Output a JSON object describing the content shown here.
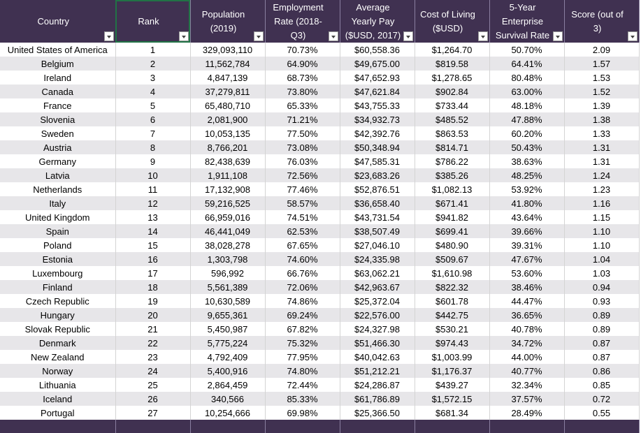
{
  "table": {
    "headers": [
      "Country",
      "Rank",
      "Population (2019)",
      "Employment Rate (2018-Q3)",
      "Average Yearly Pay ($USD, 2017)",
      "Cost of Living ($USD)",
      "5-Year Enterprise Survival Rate",
      "Score (out of 3)"
    ],
    "rows": [
      [
        "United States of America",
        "1",
        "329,093,110",
        "70.73%",
        "$60,558.36",
        "$1,264.70",
        "50.70%",
        "2.09"
      ],
      [
        "Belgium",
        "2",
        "11,562,784",
        "64.90%",
        "$49,675.00",
        "$819.58",
        "64.41%",
        "1.57"
      ],
      [
        "Ireland",
        "3",
        "4,847,139",
        "68.73%",
        "$47,652.93",
        "$1,278.65",
        "80.48%",
        "1.53"
      ],
      [
        "Canada",
        "4",
        "37,279,811",
        "73.80%",
        "$47,621.84",
        "$902.84",
        "63.00%",
        "1.52"
      ],
      [
        "France",
        "5",
        "65,480,710",
        "65.33%",
        "$43,755.33",
        "$733.44",
        "48.18%",
        "1.39"
      ],
      [
        "Slovenia",
        "6",
        "2,081,900",
        "71.21%",
        "$34,932.73",
        "$485.52",
        "47.88%",
        "1.38"
      ],
      [
        "Sweden",
        "7",
        "10,053,135",
        "77.50%",
        "$42,392.76",
        "$863.53",
        "60.20%",
        "1.33"
      ],
      [
        "Austria",
        "8",
        "8,766,201",
        "73.08%",
        "$50,348.94",
        "$814.71",
        "50.43%",
        "1.31"
      ],
      [
        "Germany",
        "9",
        "82,438,639",
        "76.03%",
        "$47,585.31",
        "$786.22",
        "38.63%",
        "1.31"
      ],
      [
        "Latvia",
        "10",
        "1,911,108",
        "72.56%",
        "$23,683.26",
        "$385.26",
        "48.25%",
        "1.24"
      ],
      [
        "Netherlands",
        "11",
        "17,132,908",
        "77.46%",
        "$52,876.51",
        "$1,082.13",
        "53.92%",
        "1.23"
      ],
      [
        "Italy",
        "12",
        "59,216,525",
        "58.57%",
        "$36,658.40",
        "$671.41",
        "41.80%",
        "1.16"
      ],
      [
        "United Kingdom",
        "13",
        "66,959,016",
        "74.51%",
        "$43,731.54",
        "$941.82",
        "43.64%",
        "1.15"
      ],
      [
        "Spain",
        "14",
        "46,441,049",
        "62.53%",
        "$38,507.49",
        "$699.41",
        "39.66%",
        "1.10"
      ],
      [
        "Poland",
        "15",
        "38,028,278",
        "67.65%",
        "$27,046.10",
        "$480.90",
        "39.31%",
        "1.10"
      ],
      [
        "Estonia",
        "16",
        "1,303,798",
        "74.60%",
        "$24,335.98",
        "$509.67",
        "47.67%",
        "1.04"
      ],
      [
        "Luxembourg",
        "17",
        "596,992",
        "66.76%",
        "$63,062.21",
        "$1,610.98",
        "53.60%",
        "1.03"
      ],
      [
        "Finland",
        "18",
        "5,561,389",
        "72.06%",
        "$42,963.67",
        "$822.32",
        "38.46%",
        "0.94"
      ],
      [
        "Czech Republic",
        "19",
        "10,630,589",
        "74.86%",
        "$25,372.04",
        "$601.78",
        "44.47%",
        "0.93"
      ],
      [
        "Hungary",
        "20",
        "9,655,361",
        "69.24%",
        "$22,576.00",
        "$442.75",
        "36.65%",
        "0.89"
      ],
      [
        "Slovak Republic",
        "21",
        "5,450,987",
        "67.82%",
        "$24,327.98",
        "$530.21",
        "40.78%",
        "0.89"
      ],
      [
        "Denmark",
        "22",
        "5,775,224",
        "75.32%",
        "$51,466.30",
        "$974.43",
        "34.72%",
        "0.87"
      ],
      [
        "New Zealand",
        "23",
        "4,792,409",
        "77.95%",
        "$40,042.63",
        "$1,003.99",
        "44.00%",
        "0.87"
      ],
      [
        "Norway",
        "24",
        "5,400,916",
        "74.80%",
        "$51,212.21",
        "$1,176.37",
        "40.77%",
        "0.86"
      ],
      [
        "Lithuania",
        "25",
        "2,864,459",
        "72.44%",
        "$24,286.87",
        "$439.27",
        "32.34%",
        "0.85"
      ],
      [
        "Iceland",
        "26",
        "340,566",
        "85.33%",
        "$61,786.89",
        "$1,572.15",
        "37.57%",
        "0.72"
      ],
      [
        "Portugal",
        "27",
        "10,254,666",
        "69.98%",
        "$25,366.50",
        "$681.34",
        "28.49%",
        "0.55"
      ]
    ]
  }
}
